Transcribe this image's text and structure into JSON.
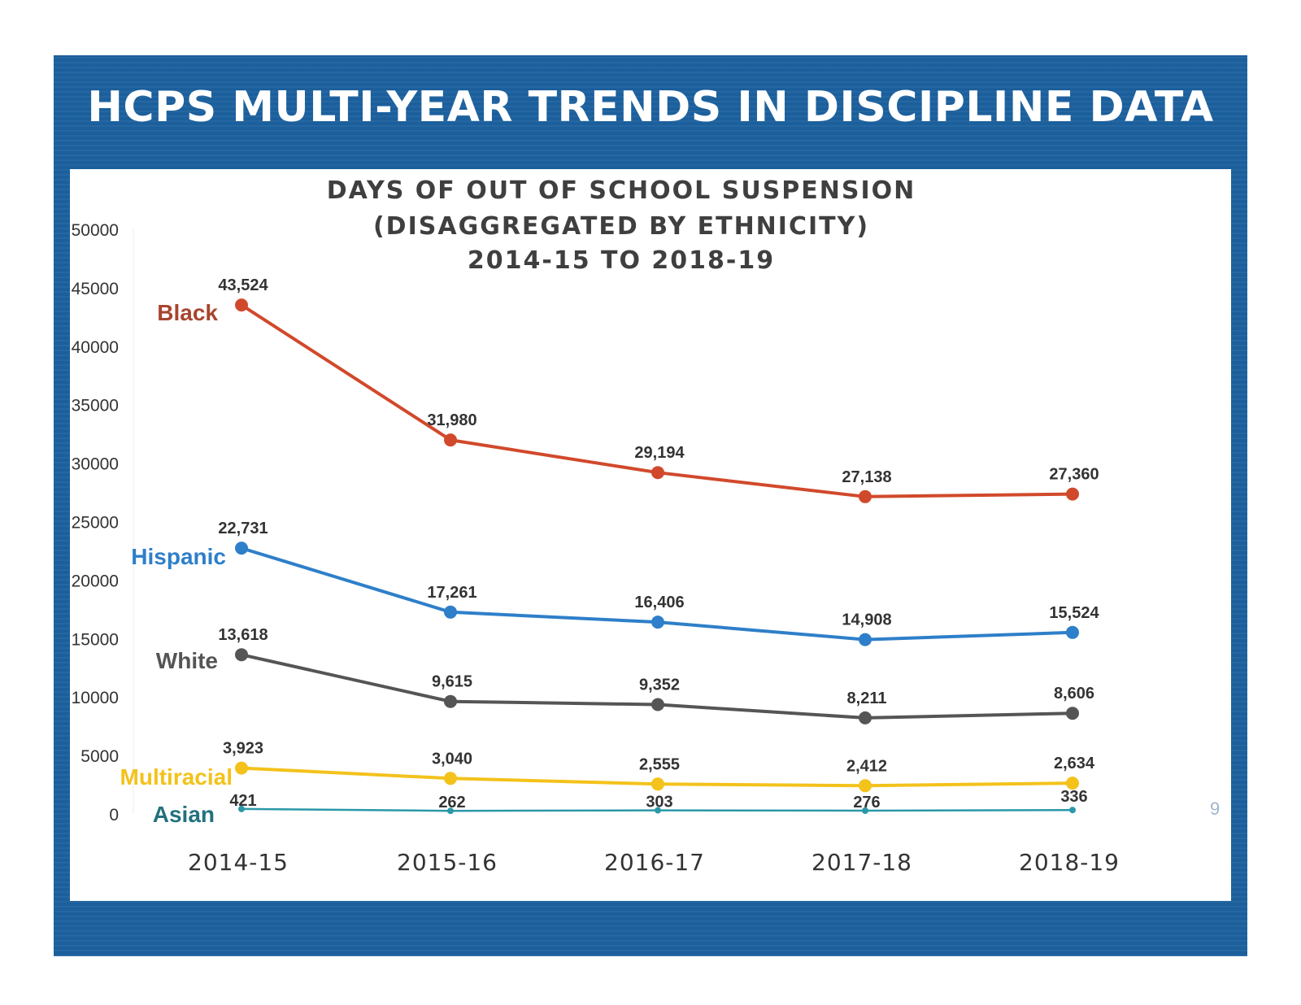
{
  "slide": {
    "title": "HCPS MULTI-YEAR TRENDS IN DISCIPLINE DATA",
    "page_number": "9"
  },
  "colors": {
    "frame": "#1b5f9c",
    "Black": "#d1492b",
    "Hispanic": "#2e7fc9",
    "White": "#555555",
    "Multiracial": "#f3c21b",
    "Asian": "#2a98a8"
  },
  "chart_data": {
    "type": "line",
    "title": [
      "DAYS OF OUT OF SCHOOL SUSPENSION",
      "(DISAGGREGATED BY ETHNICITY)",
      "2014-15 TO 2018-19"
    ],
    "categories": [
      "2014-15",
      "2015-16",
      "2016-17",
      "2017-18",
      "2018-19"
    ],
    "ylim": [
      0,
      50000
    ],
    "yticks": [
      "0",
      "5000",
      "10000",
      "15000",
      "20000",
      "25000",
      "30000",
      "35000",
      "40000",
      "45000",
      "50000"
    ],
    "xlabel": "",
    "ylabel": "",
    "grid": false,
    "legend": "inline labels at left",
    "series": [
      {
        "name": "Black",
        "values": [
          43524,
          31980,
          29194,
          27138,
          27360
        ],
        "labels": [
          "43,524",
          "31,980",
          "29,194",
          "27,138",
          "27,360"
        ]
      },
      {
        "name": "Hispanic",
        "values": [
          22731,
          17261,
          16406,
          14908,
          15524
        ],
        "labels": [
          "22,731",
          "17,261",
          "16,406",
          "14,908",
          "15,524"
        ]
      },
      {
        "name": "White",
        "values": [
          13618,
          9615,
          9352,
          8211,
          8606
        ],
        "labels": [
          "13,618",
          "9,615",
          "9,352",
          "8,211",
          "8,606"
        ]
      },
      {
        "name": "Multiracial",
        "values": [
          3923,
          3040,
          2555,
          2412,
          2634
        ],
        "labels": [
          "3,923",
          "3,040",
          "2,555",
          "2,412",
          "2,634"
        ]
      },
      {
        "name": "Asian",
        "values": [
          421,
          262,
          303,
          276,
          336
        ],
        "labels": [
          "421",
          "262",
          "303",
          "276",
          "336"
        ]
      }
    ]
  }
}
